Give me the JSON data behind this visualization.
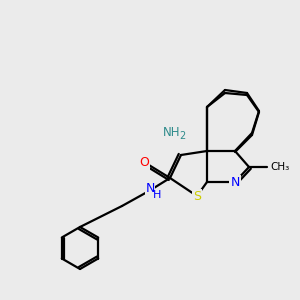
{
  "bg_color": "#ebebeb",
  "atom_colors": {
    "S": "#cccc00",
    "N": "#0000ff",
    "O": "#ff0000",
    "C": "#000000",
    "NH2": "#2e8b8b",
    "NH": "#0000ff"
  },
  "lw": 1.6
}
